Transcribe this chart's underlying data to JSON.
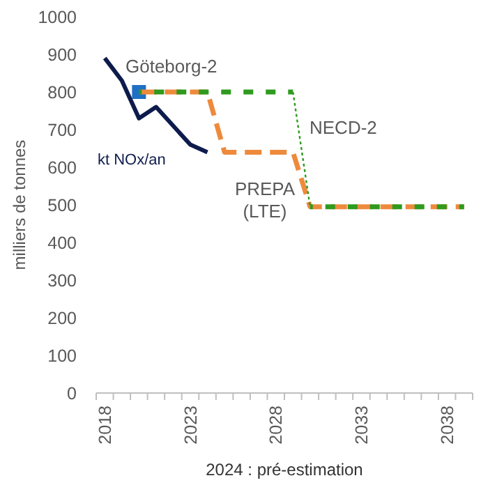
{
  "chart_data": {
    "type": "line",
    "xlabel": "2024 : pré-estimation",
    "ylabel": "milliers de tonnes",
    "categories": [
      "2018",
      null,
      null,
      null,
      null,
      "2023",
      null,
      null,
      null,
      null,
      "2028",
      null,
      null,
      null,
      null,
      "2033",
      null,
      null,
      null,
      null,
      "2038",
      null
    ],
    "ylim": [
      0,
      1000
    ],
    "yticks": [
      0,
      100,
      200,
      300,
      400,
      500,
      600,
      700,
      800,
      900,
      1000
    ],
    "grid": false,
    "legend": false,
    "series": [
      {
        "name": "Göteborg-2",
        "type": "scatter",
        "marker": "square",
        "color": "#1f6fc5",
        "values": [
          null,
          null,
          800,
          null,
          null,
          null,
          null,
          null,
          null,
          null,
          null,
          null,
          null,
          null,
          null,
          null,
          null,
          null,
          null,
          null,
          null,
          null
        ]
      },
      {
        "name": "kt NOx/an",
        "color": "#0d1b4c",
        "line_style": "solid",
        "values": [
          890,
          830,
          730,
          760,
          710,
          660,
          640,
          null,
          null,
          null,
          null,
          null,
          null,
          null,
          null,
          null,
          null,
          null,
          null,
          null,
          null,
          null
        ]
      },
      {
        "name": "PREPA (LTE)",
        "color": "#ee8a3c",
        "line_style": "dashed",
        "values": [
          null,
          null,
          800,
          800,
          800,
          800,
          800,
          640,
          640,
          640,
          640,
          640,
          495,
          495,
          495,
          495,
          495,
          495,
          495,
          495,
          495,
          495
        ]
      },
      {
        "name": "NECD-2",
        "color": "#2e9a1e",
        "line_style": "dotted",
        "values": [
          null,
          null,
          null,
          null,
          null,
          null,
          null,
          null,
          null,
          null,
          null,
          800,
          495,
          null,
          null,
          null,
          null,
          null,
          null,
          null,
          null,
          null
        ]
      },
      {
        "color": "#2e9a1e",
        "line_style": "dashed",
        "values": [
          null,
          null,
          800,
          800,
          800,
          800,
          800,
          800,
          800,
          800,
          800,
          800,
          null,
          null,
          null,
          null,
          null,
          null,
          null,
          null,
          null,
          null
        ]
      },
      {
        "color": "#2e9a1e",
        "line_style": "dashed",
        "values": [
          null,
          null,
          null,
          null,
          null,
          null,
          null,
          null,
          null,
          null,
          null,
          null,
          495,
          495,
          495,
          495,
          495,
          495,
          495,
          495,
          495,
          495
        ]
      }
    ]
  }
}
